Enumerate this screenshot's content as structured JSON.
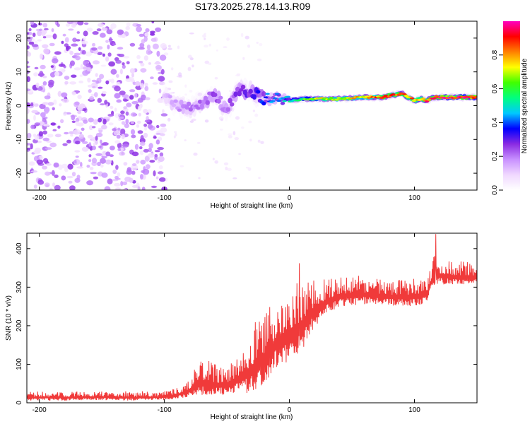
{
  "title": "S173.2025.278.14.13.R09",
  "chart_data": [
    {
      "type": "heatmap",
      "xlabel": "Height of straight line (km)",
      "ylabel": "Frequency (Hz)",
      "xlim": [
        -210,
        150
      ],
      "ylim": [
        -25,
        25
      ],
      "x_ticks": [
        -200,
        -100,
        0,
        100
      ],
      "y_ticks": [
        -20,
        -10,
        0,
        10,
        20
      ],
      "colorbar": {
        "label": "Normalized spectral amplitude",
        "range": [
          0,
          1
        ],
        "ticks": [
          "0.0",
          "0.2",
          "0.4",
          "0.6",
          "0.8"
        ],
        "stops": [
          "#ffffff",
          "#f0d8ff",
          "#c890ff",
          "#8a2be2",
          "#0000ff",
          "#00c8ff",
          "#00ff80",
          "#40ff00",
          "#ffff00",
          "#ff8000",
          "#ff0000",
          "#ff00c0"
        ]
      },
      "noise_region": {
        "x_range": [
          -210,
          -100
        ],
        "freq_range": [
          -25,
          25
        ],
        "amplitude": 0.1
      },
      "ridge": {
        "description": "dominant frequency track",
        "x": [
          -100,
          -90,
          -80,
          -70,
          -60,
          -50,
          -40,
          -30,
          -20,
          -10,
          0,
          10,
          20,
          40,
          60,
          75,
          80,
          90,
          95,
          100,
          105,
          110,
          115,
          130,
          150
        ],
        "freq": [
          3,
          0,
          -1,
          1,
          3,
          -1,
          5,
          4,
          2,
          2,
          1.5,
          2,
          2,
          2,
          2.5,
          2.5,
          3,
          3.5,
          2.5,
          1.5,
          2,
          1.5,
          2.5,
          2.5,
          2.5
        ],
        "amplitude": [
          0.12,
          0.18,
          0.2,
          0.22,
          0.25,
          0.22,
          0.28,
          0.3,
          0.38,
          0.45,
          0.5,
          0.62,
          0.7,
          0.72,
          0.78,
          0.85,
          0.88,
          0.9,
          0.82,
          0.8,
          0.85,
          0.88,
          0.95,
          0.97,
          0.98
        ]
      }
    },
    {
      "type": "line",
      "xlabel": "Height of straight line (km)",
      "ylabel": "SNR (10 * v/v)",
      "xlim": [
        -210,
        150
      ],
      "ylim": [
        0,
        440
      ],
      "x_ticks": [
        -200,
        -100,
        0,
        100
      ],
      "y_ticks": [
        0,
        100,
        200,
        300,
        400
      ],
      "series": [
        {
          "name": "SNR",
          "color": "#f03a3a",
          "x": [
            -210,
            -180,
            -150,
            -120,
            -100,
            -90,
            -80,
            -70,
            -60,
            -50,
            -40,
            -30,
            -20,
            -10,
            0,
            10,
            20,
            30,
            40,
            60,
            80,
            100,
            110,
            115,
            120,
            130,
            140,
            150
          ],
          "baseline": [
            12,
            12,
            13,
            12,
            13,
            18,
            28,
            45,
            40,
            40,
            55,
            70,
            100,
            140,
            160,
            185,
            230,
            255,
            270,
            275,
            270,
            270,
            275,
            325,
            325,
            322,
            322,
            322
          ],
          "spread": [
            18,
            18,
            18,
            18,
            18,
            22,
            35,
            75,
            60,
            55,
            85,
            130,
            150,
            150,
            150,
            140,
            90,
            75,
            60,
            55,
            50,
            55,
            50,
            60,
            50,
            45,
            45,
            40
          ],
          "peaks": [
            {
              "x": 8,
              "y": 362
            },
            {
              "x": 117,
              "y": 438
            }
          ]
        }
      ]
    }
  ]
}
